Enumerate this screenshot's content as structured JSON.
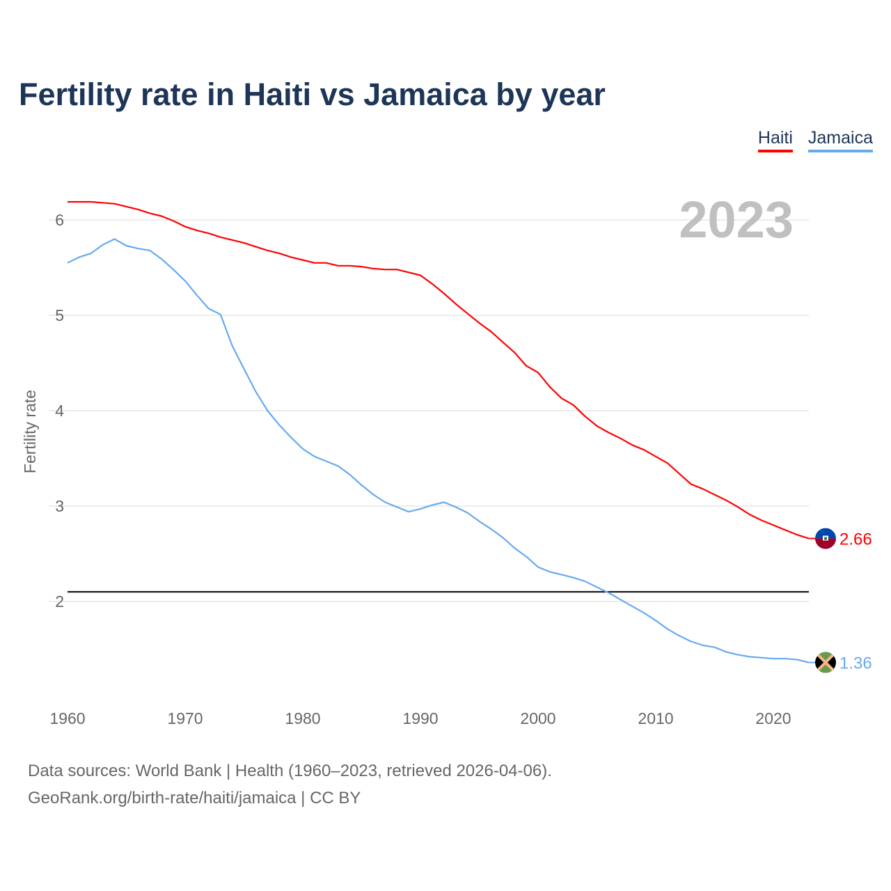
{
  "title": "Fertility rate in Haiti vs Jamaica by year",
  "year_label": "2023",
  "source_line1": "Data sources: World Bank | Health (1960–2023, retrieved 2026-04-06).",
  "source_line2": "GeoRank.org/birth-rate/haiti/jamaica | CC BY",
  "chart_data": {
    "type": "line",
    "title": "Fertility rate in Haiti vs Jamaica by year",
    "xlabel": "",
    "ylabel": "Fertility rate",
    "xlim": [
      1960,
      2023
    ],
    "ylim": [
      1,
      6.4
    ],
    "xticks": [
      "1960",
      "1970",
      "1980",
      "1990",
      "2000",
      "2010",
      "2020"
    ],
    "yticks": [
      "2",
      "3",
      "4",
      "5",
      "6"
    ],
    "grid": true,
    "legend_position": "top-right",
    "reference_line": 2.1,
    "x": [
      1960,
      1961,
      1962,
      1963,
      1964,
      1965,
      1966,
      1967,
      1968,
      1969,
      1970,
      1971,
      1972,
      1973,
      1974,
      1975,
      1976,
      1977,
      1978,
      1979,
      1980,
      1981,
      1982,
      1983,
      1984,
      1985,
      1986,
      1987,
      1988,
      1989,
      1990,
      1991,
      1992,
      1993,
      1994,
      1995,
      1996,
      1997,
      1998,
      1999,
      2000,
      2001,
      2002,
      2003,
      2004,
      2005,
      2006,
      2007,
      2008,
      2009,
      2010,
      2011,
      2012,
      2013,
      2014,
      2015,
      2016,
      2017,
      2018,
      2019,
      2020,
      2021,
      2022,
      2023
    ],
    "series": [
      {
        "name": "Haiti",
        "color": "#ff0000",
        "end_label": "2.66",
        "values": [
          6.19,
          6.19,
          6.19,
          6.18,
          6.17,
          6.14,
          6.11,
          6.07,
          6.04,
          5.99,
          5.93,
          5.89,
          5.86,
          5.82,
          5.79,
          5.76,
          5.72,
          5.68,
          5.65,
          5.61,
          5.58,
          5.55,
          5.55,
          5.52,
          5.52,
          5.51,
          5.49,
          5.48,
          5.48,
          5.45,
          5.42,
          5.33,
          5.23,
          5.12,
          5.02,
          4.92,
          4.83,
          4.72,
          4.61,
          4.47,
          4.4,
          4.25,
          4.13,
          4.06,
          3.94,
          3.84,
          3.77,
          3.71,
          3.64,
          3.59,
          3.52,
          3.45,
          3.34,
          3.23,
          3.18,
          3.12,
          3.06,
          2.99,
          2.91,
          2.85,
          2.8,
          2.75,
          2.7,
          2.66
        ]
      },
      {
        "name": "Jamaica",
        "color": "#66aaee",
        "end_label": "1.36",
        "values": [
          5.55,
          5.61,
          5.65,
          5.74,
          5.8,
          5.73,
          5.7,
          5.68,
          5.59,
          5.48,
          5.36,
          5.21,
          5.07,
          5.01,
          4.68,
          4.44,
          4.2,
          4.0,
          3.85,
          3.72,
          3.6,
          3.52,
          3.47,
          3.42,
          3.33,
          3.22,
          3.12,
          3.04,
          2.99,
          2.94,
          2.97,
          3.01,
          3.04,
          2.99,
          2.93,
          2.84,
          2.76,
          2.67,
          2.56,
          2.47,
          2.36,
          2.31,
          2.28,
          2.25,
          2.21,
          2.15,
          2.09,
          2.02,
          1.95,
          1.88,
          1.8,
          1.71,
          1.64,
          1.58,
          1.54,
          1.52,
          1.47,
          1.44,
          1.42,
          1.41,
          1.4,
          1.4,
          1.39,
          1.36
        ]
      }
    ]
  }
}
